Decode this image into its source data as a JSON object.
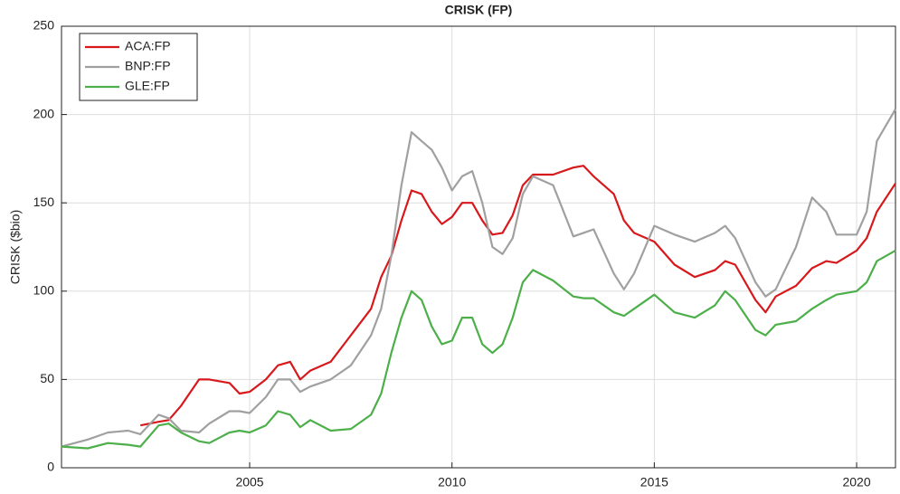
{
  "chart_data": {
    "type": "line",
    "title": "CRISK (FP)",
    "y_label": "CRISK ($bio)",
    "x": [
      2000.35,
      2001,
      2001.5,
      2002,
      2002.3,
      2002.75,
      2003,
      2003.3,
      2003.75,
      2004,
      2004.5,
      2004.75,
      2005,
      2005.4,
      2005.7,
      2006,
      2006.25,
      2006.5,
      2007,
      2007.5,
      2008,
      2008.25,
      2008.5,
      2008.75,
      2009,
      2009.25,
      2009.5,
      2009.75,
      2010,
      2010.25,
      2010.5,
      2010.75,
      2011,
      2011.25,
      2011.5,
      2011.75,
      2012,
      2012.5,
      2013,
      2013.25,
      2013.5,
      2014,
      2014.25,
      2014.5,
      2015,
      2015.5,
      2016,
      2016.5,
      2016.75,
      2017,
      2017.5,
      2017.75,
      2018,
      2018.5,
      2018.9,
      2019.25,
      2019.5,
      2020,
      2020.25,
      2020.5,
      2020.96
    ],
    "series": [
      {
        "name": "ACA:FP",
        "color": "#d7191c",
        "values": [
          null,
          null,
          null,
          null,
          24,
          26,
          27,
          35,
          50,
          50,
          48,
          42,
          43,
          50,
          58,
          60,
          50,
          55,
          60,
          75,
          90,
          108,
          120,
          140,
          157,
          155,
          145,
          138,
          142,
          150,
          150,
          140,
          132,
          133,
          143,
          160,
          166,
          166,
          170,
          171,
          165,
          155,
          140,
          133,
          128,
          115,
          108,
          112,
          117,
          115,
          95,
          88,
          97,
          103,
          113,
          117,
          116,
          123,
          130,
          145,
          161
        ]
      },
      {
        "name": "BNP:FP",
        "color": "#a0a0a0",
        "values": [
          12,
          16,
          20,
          21,
          19,
          30,
          28,
          21,
          20,
          25,
          32,
          32,
          31,
          40,
          50,
          50,
          43,
          46,
          50,
          58,
          75,
          90,
          120,
          160,
          190,
          185,
          180,
          170,
          157,
          165,
          168,
          150,
          125,
          121,
          130,
          155,
          165,
          160,
          131,
          133,
          135,
          110,
          101,
          110,
          137,
          132,
          128,
          133,
          137,
          130,
          105,
          97,
          101,
          125,
          153,
          145,
          132,
          132,
          145,
          185,
          203
        ]
      },
      {
        "name": "GLE:FP",
        "color": "#4daf4a",
        "values": [
          12,
          11,
          14,
          13,
          12,
          24,
          25,
          20,
          15,
          14,
          20,
          21,
          20,
          24,
          32,
          30,
          23,
          27,
          21,
          22,
          30,
          42,
          65,
          85,
          100,
          95,
          80,
          70,
          72,
          85,
          85,
          70,
          65,
          70,
          85,
          105,
          112,
          106,
          97,
          96,
          96,
          88,
          86,
          90,
          98,
          88,
          85,
          92,
          100,
          95,
          78,
          75,
          81,
          83,
          90,
          95,
          98,
          100,
          105,
          117,
          123
        ]
      }
    ],
    "xlim": [
      2000.35,
      2020.96
    ],
    "xticks": [
      2005,
      2010,
      2015,
      2020
    ],
    "ylim": [
      0,
      250
    ],
    "yticks": [
      0,
      50,
      100,
      150,
      200,
      250
    ],
    "grid": true,
    "legend": "top-left"
  }
}
